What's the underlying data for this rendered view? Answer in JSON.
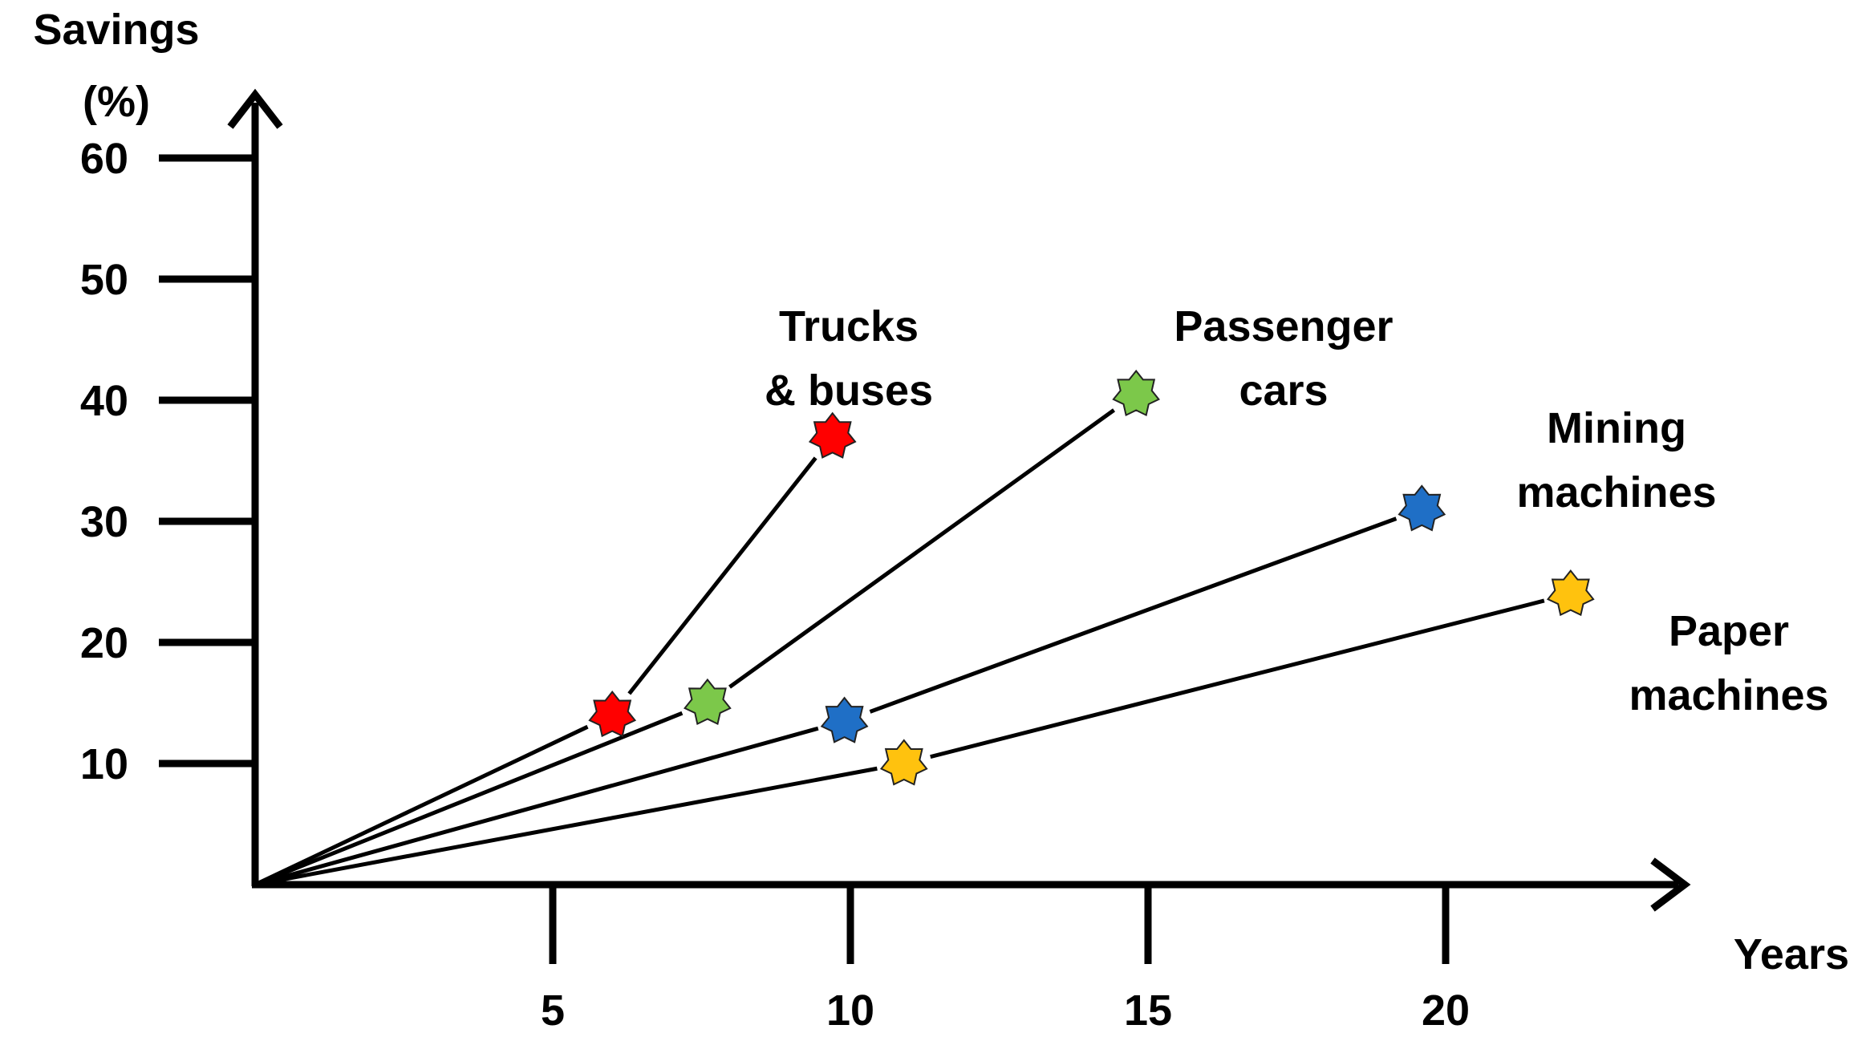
{
  "chart_data": {
    "type": "line",
    "title": "",
    "ylabel": [
      "Savings",
      "(%)"
    ],
    "xlabel": "Years",
    "xlim": [
      0,
      23.5
    ],
    "ylim": [
      0,
      67
    ],
    "x_ticks": [
      5,
      10,
      15,
      20
    ],
    "y_ticks": [
      10,
      20,
      30,
      40,
      50,
      60
    ],
    "grid": false,
    "series": [
      {
        "name": [
          "Trucks",
          "& buses"
        ],
        "color": "#ff0000",
        "points": [
          {
            "x": 0,
            "y": 0
          },
          {
            "x": 6,
            "y": 14
          },
          {
            "x": 9.7,
            "y": 37
          }
        ]
      },
      {
        "name": [
          "Passenger",
          "cars"
        ],
        "color": "#7cc84a",
        "points": [
          {
            "x": 0,
            "y": 0
          },
          {
            "x": 7.6,
            "y": 15
          },
          {
            "x": 14.8,
            "y": 40.5
          }
        ]
      },
      {
        "name": [
          "Mining",
          "machines"
        ],
        "color": "#1f6fc6",
        "points": [
          {
            "x": 0,
            "y": 0
          },
          {
            "x": 9.9,
            "y": 13.5
          },
          {
            "x": 19.6,
            "y": 31
          }
        ]
      },
      {
        "name": [
          "Paper",
          "machines"
        ],
        "color": "#ffc20e",
        "points": [
          {
            "x": 0,
            "y": 0
          },
          {
            "x": 10.9,
            "y": 10
          },
          {
            "x": 22.1,
            "y": 24
          }
        ]
      }
    ]
  }
}
